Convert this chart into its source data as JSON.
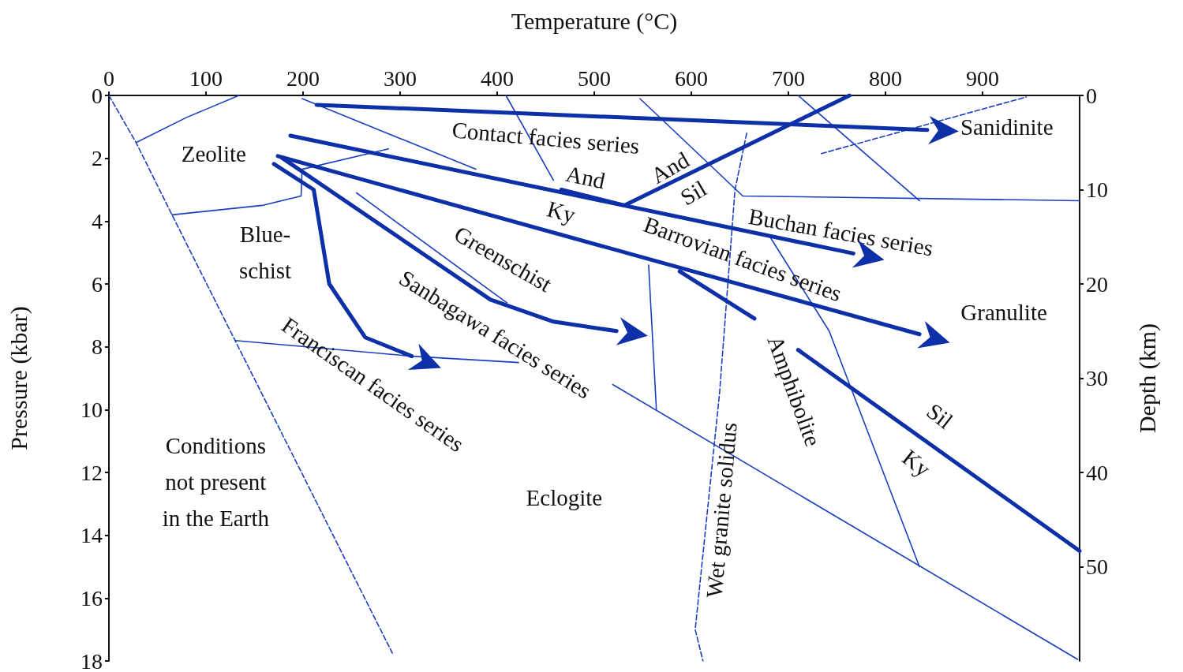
{
  "chart_data": {
    "type": "line",
    "xlabel": "Temperature (°C)",
    "ylabel": "Pressure (kbar)",
    "y2label": "Depth (km)",
    "xlim": [
      0,
      1000
    ],
    "xticks": [
      0,
      100,
      200,
      300,
      400,
      500,
      600,
      700,
      800,
      900
    ],
    "ylim": [
      18,
      0
    ],
    "yticks": [
      0,
      2,
      4,
      6,
      8,
      10,
      12,
      14,
      16,
      18
    ],
    "y2lim": [
      60,
      0
    ],
    "y2ticks": [
      0,
      10,
      20,
      30,
      40,
      50
    ],
    "marker": "none",
    "series": [
      {
        "color": "#1a3fc0",
        "line_style": "dashed",
        "x": [
          0,
          28,
          65,
          130,
          292
        ],
        "values": [
          0,
          1.5,
          3.8,
          7.8,
          17.75
        ]
      },
      {
        "color": "#1a3fc0",
        "x": [
          28,
          80,
          134
        ],
        "values": [
          1.5,
          0.7,
          0
        ]
      },
      {
        "color": "#1a3fc0",
        "x": [
          65,
          158,
          198,
          199,
          288
        ],
        "values": [
          3.8,
          3.5,
          3.2,
          2.35,
          1.7
        ]
      },
      {
        "color": "#1a3fc0",
        "x": [
          130,
          312,
          422
        ],
        "values": [
          7.8,
          8.3,
          8.5
        ]
      },
      {
        "color": "#1a3fc0",
        "x": [
          519,
          998
        ],
        "values": [
          9.2,
          17.95
        ]
      },
      {
        "color": "#1a3fc0",
        "x": [
          255,
          410
        ],
        "values": [
          3.1,
          6.6
        ]
      },
      {
        "color": "#1a3fc0",
        "x": [
          556,
          564
        ],
        "values": [
          5.4,
          10
        ]
      },
      {
        "color": "#1a3fc0",
        "line_style": "dashed",
        "x": [
          657,
          645,
          629,
          604,
          612
        ],
        "values": [
          1.2,
          3,
          9.5,
          17,
          18
        ]
      },
      {
        "color": "#1a3fc0",
        "x": [
          547,
          653,
          1000
        ],
        "values": [
          0.1,
          3.2,
          3.35
        ]
      },
      {
        "color": "#1a3fc0",
        "x": [
          710,
          835
        ],
        "values": [
          0,
          3.35
        ]
      },
      {
        "color": "#1a3fc0",
        "line_style": "dashed",
        "x": [
          734,
          945
        ],
        "values": [
          1.85,
          0.05
        ]
      },
      {
        "color": "#1a3fc0",
        "x": [
          681,
          742,
          835
        ],
        "values": [
          4.5,
          7.5,
          15
        ]
      },
      {
        "color": "#1a3fc0",
        "x": [
          199,
          378
        ],
        "values": [
          0.1,
          2.35
        ]
      },
      {
        "color": "#1a3fc0",
        "x": [
          409,
          458
        ],
        "values": [
          0,
          2.7
        ]
      },
      {
        "color": "#0d2fa8",
        "x": [
          531,
          763
        ],
        "values": [
          3.5,
          0
        ]
      },
      {
        "color": "#0d2fa8",
        "x": [
          710,
          1000
        ],
        "values": [
          8.1,
          14.5
        ]
      },
      {
        "color": "#0d2fa8",
        "x": [
          588,
          665
        ],
        "values": [
          5.6,
          7.1
        ]
      },
      {
        "color": "#0d2fa8",
        "x": [
          466,
          531
        ],
        "values": [
          3,
          3.5
        ]
      },
      {
        "color": "#0d2fa8",
        "x": [
          214,
          843
        ],
        "values": [
          0.3,
          1.1
        ]
      },
      {
        "color": "#0d2fa8",
        "x": [
          187,
          767
        ],
        "values": [
          1.28,
          5.03
        ]
      },
      {
        "color": "#0d2fa8",
        "x": [
          174,
          835
        ],
        "values": [
          1.93,
          7.6
        ]
      },
      {
        "color": "#0d2fa8",
        "x": [
          178,
          393,
          458,
          523
        ],
        "values": [
          1.98,
          6.5,
          7.2,
          7.5
        ]
      },
      {
        "color": "#0d2fa8",
        "x": [
          170,
          211,
          227,
          264,
          312
        ],
        "values": [
          2.18,
          3,
          6,
          7.7,
          8.3
        ]
      }
    ],
    "annotations": [
      "Contact facies series",
      "Sanidinite",
      "Zeolite",
      "And",
      "And",
      "Sil",
      "Ky",
      "Buchan facies series",
      "Barrovian facies series",
      "Blue-\nschist",
      "Greenschist",
      "Sanbagawa facies series",
      "Franciscan facies series",
      "Granulite",
      "Amphibolite",
      "Sil",
      "Ky",
      "Conditions\nnot present\nin the Earth",
      "Eclogite",
      "Wet granite solidus"
    ]
  }
}
